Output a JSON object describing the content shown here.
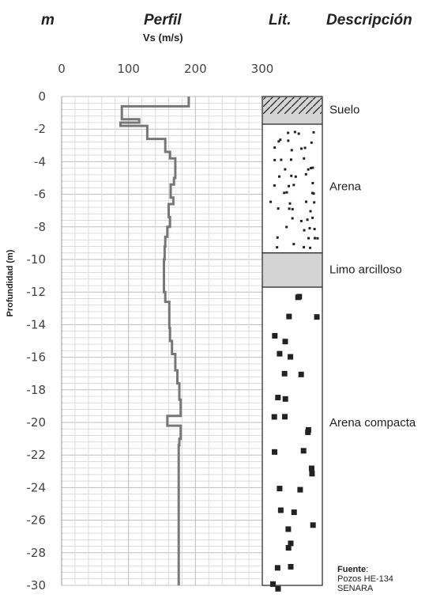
{
  "headers": {
    "m": "m",
    "perfil": "Perfil",
    "vs_unit": "Vs (m/s)",
    "lit": "Lit.",
    "descripcion": "Descripción"
  },
  "source": {
    "label": "Fuente",
    "line1": "Pozos HE-134",
    "line2": "SENARA"
  },
  "chart_data": {
    "type": "line",
    "xlabel": "Vs (m/s)",
    "ylabel": "Profundidad (m)",
    "xlim": [
      0,
      300
    ],
    "ylim": [
      -30,
      0
    ],
    "x_ticks": [
      "0",
      "100",
      "200",
      "300"
    ],
    "y_ticks": [
      "0",
      "-2",
      "-4",
      "-6",
      "-8",
      "-10",
      "-12",
      "-14",
      "-16",
      "-18",
      "-20",
      "-22",
      "-24",
      "-26",
      "-28",
      "-30"
    ],
    "x_axis_position": "top",
    "grid": true,
    "line_color": "#777777",
    "series": [
      {
        "values_vs": [
          190,
          190,
          90,
          90,
          116,
          116,
          88,
          88,
          128,
          128,
          155,
          155,
          162,
          162,
          170,
          170,
          168,
          168,
          163,
          163,
          167,
          167,
          160,
          160,
          162,
          162,
          158,
          158,
          155,
          155,
          154,
          154,
          153,
          153,
          153,
          153,
          155,
          155,
          161,
          161,
          162,
          162,
          165,
          165,
          170,
          170,
          173,
          173,
          176,
          176,
          178,
          178,
          158,
          158,
          178,
          178,
          176,
          176,
          175,
          175
        ],
        "values_depth": [
          0,
          -0.6,
          -0.6,
          -1.4,
          -1.4,
          -1.6,
          -1.6,
          -1.8,
          -1.8,
          -2.6,
          -2.6,
          -3.4,
          -3.4,
          -3.8,
          -3.8,
          -5.0,
          -5.0,
          -5.4,
          -5.4,
          -6.2,
          -6.2,
          -6.6,
          -6.6,
          -7.4,
          -7.4,
          -8.0,
          -8.0,
          -8.6,
          -8.6,
          -9.2,
          -9.2,
          -10.0,
          -10.0,
          -11.0,
          -11.0,
          -12.0,
          -12.0,
          -12.6,
          -12.6,
          -14.2,
          -14.2,
          -15.0,
          -15.0,
          -15.8,
          -15.8,
          -16.8,
          -16.8,
          -17.6,
          -17.6,
          -18.6,
          -18.6,
          -19.6,
          -19.6,
          -20.2,
          -20.2,
          -21.0,
          -21.0,
          -21.4,
          -21.4,
          -30
        ]
      }
    ],
    "lithology": [
      {
        "name": "Suelo",
        "top": 0,
        "bottom": -1.7,
        "pattern": "hatch",
        "fill": "#d4d4d4"
      },
      {
        "name": "Arena",
        "top": -1.7,
        "bottom": -9.6,
        "pattern": "dots",
        "fill": "#ffffff"
      },
      {
        "name": "Limo arcilloso",
        "top": -9.6,
        "bottom": -11.7,
        "pattern": "solid",
        "fill": "#d4d4d4"
      },
      {
        "name": "Arena compacta",
        "top": -11.7,
        "bottom": -30,
        "pattern": "squares",
        "fill": "#ffffff"
      }
    ],
    "lithology_labels": [
      {
        "text": "Suelo",
        "depth": -0.8
      },
      {
        "text": "Arena",
        "depth": -5.5
      },
      {
        "text": "Limo arcilloso",
        "depth": -10.6
      },
      {
        "text": "Arena compacta",
        "depth": -20.0
      }
    ]
  }
}
